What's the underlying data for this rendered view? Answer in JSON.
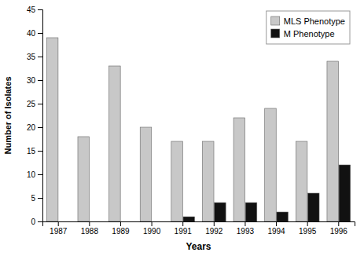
{
  "chart_data": {
    "type": "bar",
    "categories": [
      "1987",
      "1988",
      "1989",
      "1990",
      "1991",
      "1992",
      "1993",
      "1994",
      "1995",
      "1996"
    ],
    "series": [
      {
        "name": "MLS Phenotype",
        "color": "#c8c8c8",
        "values": [
          39,
          18,
          33,
          20,
          17,
          17,
          22,
          24,
          17,
          34
        ]
      },
      {
        "name": "M Phenotype",
        "color": "#111111",
        "values": [
          0,
          0,
          0,
          0,
          1,
          4,
          4,
          2,
          6,
          12
        ]
      }
    ],
    "xlabel": "Years",
    "ylabel": "Number of Isolates",
    "ylim": [
      0,
      45
    ],
    "yticks": [
      0,
      5,
      10,
      15,
      20,
      25,
      30,
      35,
      40,
      45
    ],
    "grid": false,
    "legend": "upper right"
  }
}
